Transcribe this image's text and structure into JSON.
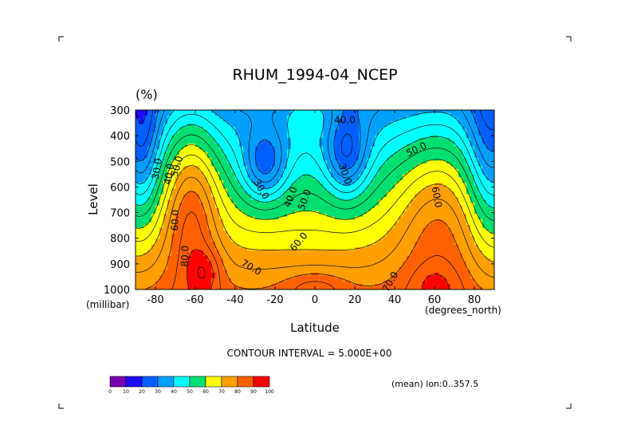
{
  "chart_data": {
    "type": "heatmap",
    "title": "RHUM_1994-04_NCEP",
    "units": "(%)",
    "xlabel": "Latitude",
    "ylabel": "Level",
    "x_unit": "(degrees_north)",
    "y_unit": "(millibar)",
    "xlim": [
      -90,
      90
    ],
    "ylim": [
      1000,
      300
    ],
    "x_ticks": [
      -80,
      -60,
      -40,
      -20,
      0,
      20,
      40,
      60,
      80
    ],
    "x_tick_labels": [
      "-80",
      "-60",
      "-40",
      "-20",
      "0",
      "20",
      "40",
      "60",
      "80"
    ],
    "y_ticks": [
      300,
      400,
      500,
      600,
      700,
      800,
      900,
      1000
    ],
    "y_tick_labels": [
      "300",
      "400",
      "500",
      "600",
      "700",
      "800",
      "900",
      "1000"
    ],
    "contour_interval_text": "CONTOUR INTERVAL = 5.000E+00",
    "mean_text": "(mean) lon:0..357.5",
    "colorbar": {
      "levels": [
        0,
        10,
        20,
        30,
        40,
        50,
        60,
        70,
        80,
        90,
        100
      ],
      "level_labels": [
        "0",
        "10",
        "20",
        "30",
        "40",
        "50",
        "60",
        "70",
        "80",
        "90",
        "100"
      ],
      "colors": [
        "#7a00b4",
        "#1e0aff",
        "#0060ff",
        "#00a0ff",
        "#00ffff",
        "#00e070",
        "#ffff00",
        "#ffa000",
        "#ff6000",
        "#ff0000"
      ]
    },
    "contour_labels": [
      {
        "text": "40.0",
        "x": 15,
        "y": 340,
        "angle": 0
      },
      {
        "text": "30.0",
        "x": -79,
        "y": 530,
        "angle": -80
      },
      {
        "text": "40.0",
        "x": -73,
        "y": 550,
        "angle": -80
      },
      {
        "text": "50.0",
        "x": -69,
        "y": 520,
        "angle": -75
      },
      {
        "text": "60.0",
        "x": -70,
        "y": 730,
        "angle": -88
      },
      {
        "text": "80.0",
        "x": -65,
        "y": 870,
        "angle": -88
      },
      {
        "text": "70.0",
        "x": -32,
        "y": 915,
        "angle": 30
      },
      {
        "text": "30.0",
        "x": -27,
        "y": 610,
        "angle": 60
      },
      {
        "text": "40.0",
        "x": -12,
        "y": 640,
        "angle": -70
      },
      {
        "text": "50.0",
        "x": -5,
        "y": 650,
        "angle": -70
      },
      {
        "text": "60.0",
        "x": -8,
        "y": 815,
        "angle": -50
      },
      {
        "text": "30.0",
        "x": 15,
        "y": 550,
        "angle": 70
      },
      {
        "text": "50.0",
        "x": 51,
        "y": 455,
        "angle": -25
      },
      {
        "text": "60.0",
        "x": 61,
        "y": 640,
        "angle": 80
      },
      {
        "text": "70.0",
        "x": 38,
        "y": 970,
        "angle": -60
      }
    ]
  }
}
